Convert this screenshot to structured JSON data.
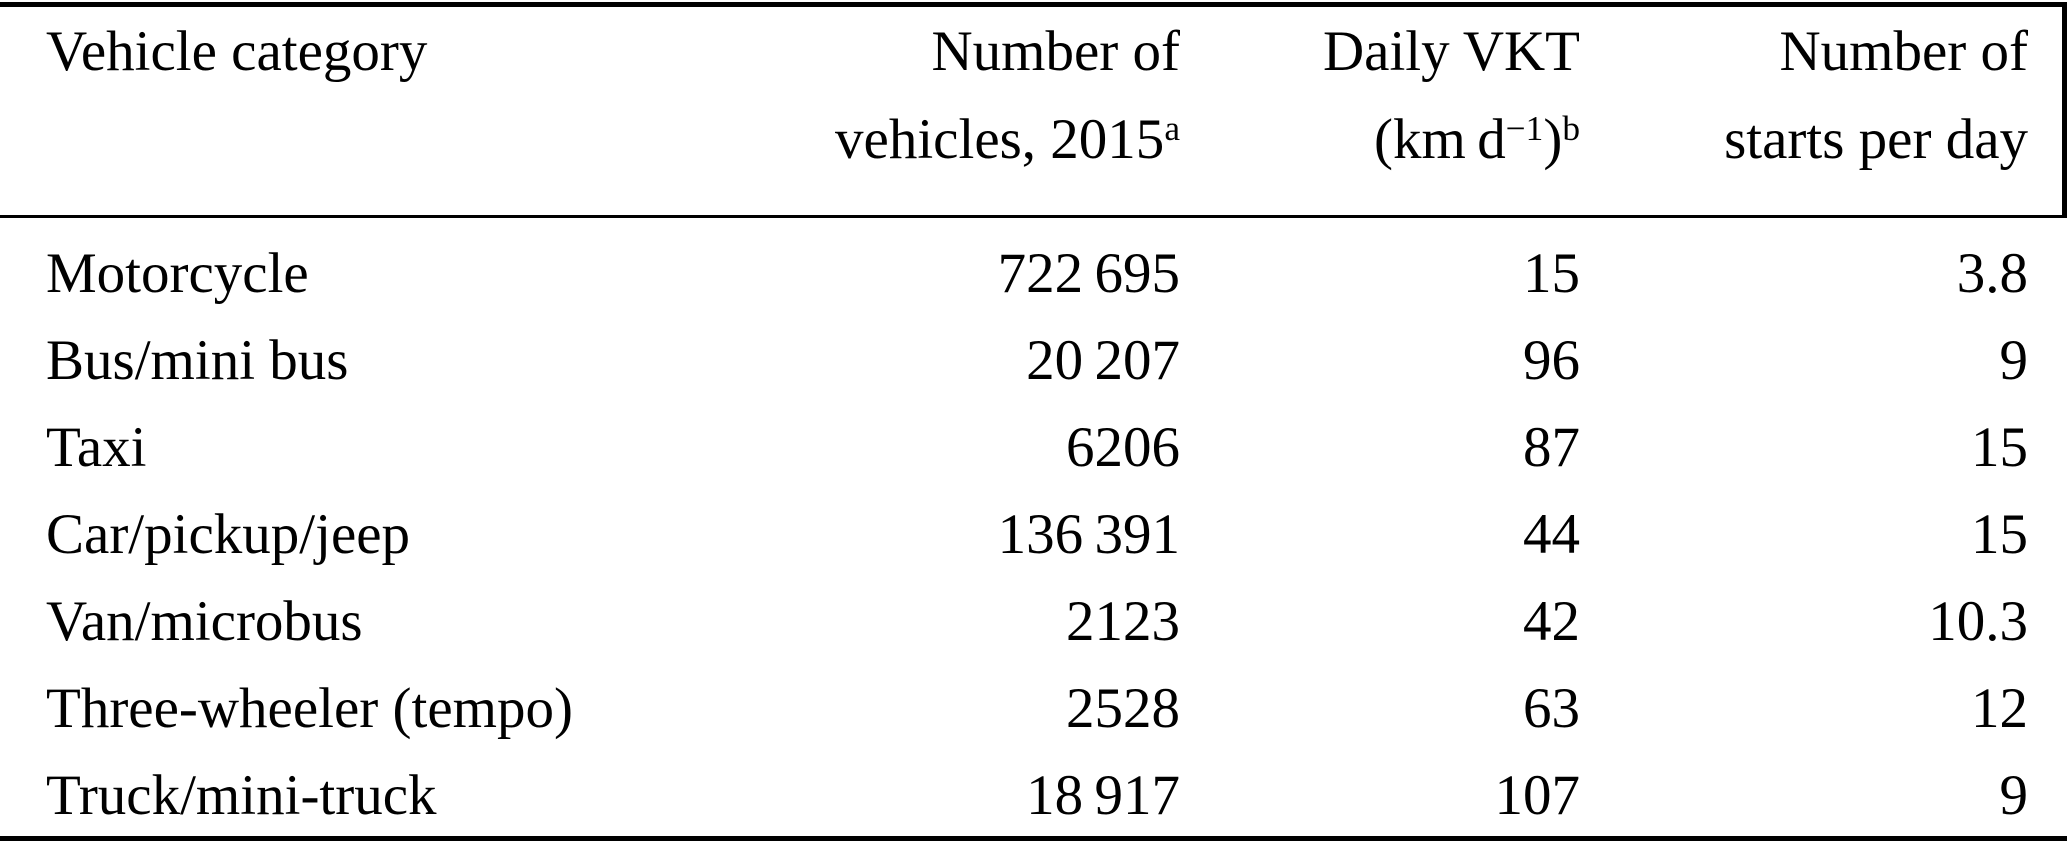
{
  "table": {
    "header": {
      "col1": {
        "line1": "Vehicle category"
      },
      "col2": {
        "line1": "Number of",
        "line2_text": "vehicles, 2015",
        "line2_sup": "a"
      },
      "col3": {
        "line1": "Daily VKT",
        "line2_open": "(km d",
        "line2_exp": "−1",
        "line2_close": ")",
        "line2_sup": "b"
      },
      "col4": {
        "line1": "Number of",
        "line2": "starts per day"
      }
    },
    "rows": [
      {
        "category": "Motorcycle",
        "vehicles": "722 695",
        "vkt": "15",
        "starts": "3.8"
      },
      {
        "category": "Bus/mini bus",
        "vehicles": "20 207",
        "vkt": "96",
        "starts": "9"
      },
      {
        "category": "Taxi",
        "vehicles": "6206",
        "vkt": "87",
        "starts": "15"
      },
      {
        "category": "Car/pickup/jeep",
        "vehicles": "136 391",
        "vkt": "44",
        "starts": "15"
      },
      {
        "category": "Van/microbus",
        "vehicles": "2123",
        "vkt": "42",
        "starts": "10.3"
      },
      {
        "category": "Three-wheeler (tempo)",
        "vehicles": "2528",
        "vkt": "63",
        "starts": "12"
      },
      {
        "category": "Truck/mini-truck",
        "vehicles": "18 917",
        "vkt": "107",
        "starts": "9"
      }
    ],
    "colors": {
      "text": "#000000",
      "background": "#ffffff",
      "rule": "#000000"
    }
  }
}
